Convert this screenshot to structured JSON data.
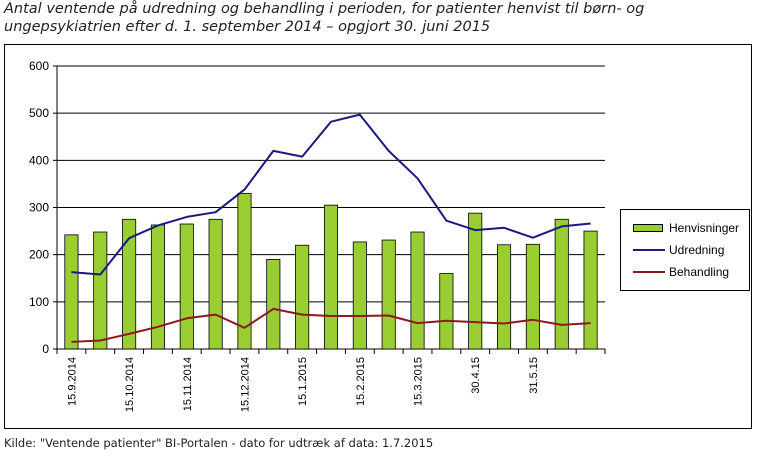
{
  "title_lines": [
    "Antal ventende på udredning og behandling i perioden, for patienter henvist til børn- og",
    "ungepsykiatrien efter d. 1. september 2014 – opgjort 30. juni 2015"
  ],
  "source_text": "Kilde: \"Ventende patienter\" BI-Portalen - dato for udtræk af data: 1.7.2015",
  "chart_data": {
    "type": "bar",
    "title": "Antal ventende på udredning og behandling i perioden, for patienter henvist til børn- og ungepsykiatrien efter d. 1. september 2014 – opgjort 30. juni 2015",
    "ylim": [
      0,
      600
    ],
    "yticks": [
      0,
      100,
      200,
      300,
      400,
      500,
      600
    ],
    "grid": true,
    "legend_position": "right",
    "n_points": 19,
    "x_tick_labels": [
      {
        "index": 0,
        "label": "15.9.2014"
      },
      {
        "index": 2,
        "label": "15.10.2014"
      },
      {
        "index": 4,
        "label": "15.11.2014"
      },
      {
        "index": 6,
        "label": "15.12.2014"
      },
      {
        "index": 8,
        "label": "15.1.2015"
      },
      {
        "index": 10,
        "label": "15.2.2015"
      },
      {
        "index": 12,
        "label": "15.3.2015"
      },
      {
        "index": 14,
        "label": "30.4.15"
      },
      {
        "index": 16,
        "label": "31.5.15"
      }
    ],
    "series": [
      {
        "name": "Henvisninger",
        "type": "bar",
        "color": "#9acd32",
        "values": [
          242,
          248,
          275,
          263,
          265,
          275,
          330,
          190,
          220,
          305,
          227,
          231,
          248,
          160,
          288,
          221,
          222,
          275,
          250
        ]
      },
      {
        "name": "Udredning",
        "type": "line",
        "color": "#1a1a80",
        "values": [
          163,
          158,
          235,
          262,
          280,
          290,
          338,
          420,
          408,
          482,
          497,
          420,
          362,
          272,
          252,
          257,
          236,
          260,
          266
        ]
      },
      {
        "name": "Behandling",
        "type": "line",
        "color": "#8b1a1a",
        "values": [
          15,
          18,
          32,
          47,
          65,
          73,
          45,
          85,
          73,
          70,
          70,
          71,
          55,
          60,
          57,
          54,
          62,
          51,
          55
        ]
      }
    ]
  }
}
